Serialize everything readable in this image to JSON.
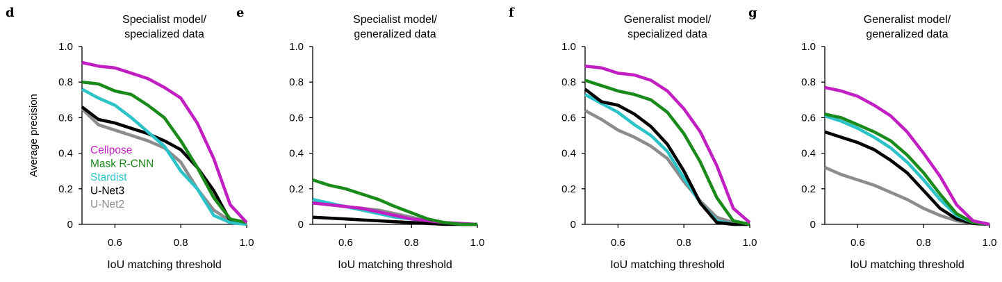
{
  "figure": {
    "ylabel": "Average precision",
    "colors": {
      "Cellpose": "#c21fc2",
      "Mask R-CNN": "#1a8a1a",
      "Stardist": "#2cc3c8",
      "U-Net3": "#000000",
      "U-Net2": "#8c8c8c"
    },
    "legend_placement": "lower-left of panel d"
  },
  "chart_data": [
    {
      "type": "line",
      "panel": "d",
      "title_lines": [
        "Specialist model/",
        "specialized data"
      ],
      "xlabel": "IoU matching threshold",
      "ylabel": "Average precision",
      "xlim": [
        0.5,
        1.0
      ],
      "ylim": [
        0,
        1.0
      ],
      "xticks": [
        0.6,
        0.8,
        1.0
      ],
      "xtick_labels": [
        "0.6",
        "0.8",
        "1.0"
      ],
      "yticks": [
        0,
        0.2,
        0.4,
        0.6,
        0.8,
        1.0
      ],
      "ytick_labels": [
        "0",
        "0.2",
        "0.4",
        "0.6",
        "0.8",
        "1.0"
      ],
      "show_ylabel": true,
      "show_legend": true,
      "x": [
        0.5,
        0.55,
        0.6,
        0.65,
        0.7,
        0.75,
        0.8,
        0.85,
        0.9,
        0.95,
        1.0
      ],
      "series": [
        {
          "name": "U-Net2",
          "values": [
            0.65,
            0.56,
            0.53,
            0.5,
            0.47,
            0.43,
            0.35,
            0.2,
            0.08,
            0.02,
            0.0
          ]
        },
        {
          "name": "U-Net3",
          "values": [
            0.66,
            0.59,
            0.57,
            0.54,
            0.51,
            0.47,
            0.42,
            0.32,
            0.19,
            0.02,
            0.01
          ]
        },
        {
          "name": "Stardist",
          "values": [
            0.76,
            0.71,
            0.67,
            0.6,
            0.52,
            0.44,
            0.3,
            0.2,
            0.05,
            0.01,
            0.0
          ]
        },
        {
          "name": "Mask R-CNN",
          "values": [
            0.8,
            0.79,
            0.75,
            0.73,
            0.67,
            0.6,
            0.47,
            0.32,
            0.15,
            0.03,
            0.01
          ]
        },
        {
          "name": "Cellpose",
          "values": [
            0.91,
            0.89,
            0.88,
            0.85,
            0.82,
            0.77,
            0.71,
            0.57,
            0.37,
            0.11,
            0.01
          ]
        }
      ]
    },
    {
      "type": "line",
      "panel": "e",
      "title_lines": [
        "Specialist model/",
        "generalized data"
      ],
      "xlabel": "IoU matching threshold",
      "ylabel": "",
      "xlim": [
        0.5,
        1.0
      ],
      "ylim": [
        0,
        1.0
      ],
      "xticks": [
        0.6,
        0.8,
        1.0
      ],
      "xtick_labels": [
        "0.6",
        "0.8",
        "1.0"
      ],
      "yticks": [
        0,
        0.2,
        0.4,
        0.6,
        0.8,
        1.0
      ],
      "ytick_labels": [
        "0",
        "0.2",
        "0.4",
        "0.6",
        "0.8",
        "1.0"
      ],
      "show_ylabel": false,
      "show_legend": false,
      "x": [
        0.5,
        0.55,
        0.6,
        0.65,
        0.7,
        0.75,
        0.8,
        0.85,
        0.9,
        0.95,
        1.0
      ],
      "series": [
        {
          "name": "U-Net2",
          "values": [
            0.12,
            0.11,
            0.1,
            0.09,
            0.08,
            0.06,
            0.04,
            0.02,
            0.005,
            0.0,
            0.0
          ]
        },
        {
          "name": "Stardist",
          "values": [
            0.14,
            0.12,
            0.1,
            0.08,
            0.06,
            0.04,
            0.03,
            0.01,
            0.005,
            0.0,
            0.0
          ]
        },
        {
          "name": "U-Net3",
          "values": [
            0.04,
            0.035,
            0.03,
            0.025,
            0.02,
            0.015,
            0.01,
            0.005,
            0.0,
            0.0,
            0.0
          ]
        },
        {
          "name": "Cellpose",
          "values": [
            0.12,
            0.11,
            0.1,
            0.09,
            0.07,
            0.05,
            0.03,
            0.02,
            0.01,
            0.005,
            0.0
          ]
        },
        {
          "name": "Mask R-CNN",
          "values": [
            0.25,
            0.22,
            0.2,
            0.17,
            0.14,
            0.1,
            0.065,
            0.03,
            0.01,
            0.0,
            0.0
          ]
        }
      ]
    },
    {
      "type": "line",
      "panel": "f",
      "title_lines": [
        "Generalist model/",
        "specialized data"
      ],
      "xlabel": "IoU matching threshold",
      "ylabel": "",
      "xlim": [
        0.5,
        1.0
      ],
      "ylim": [
        0,
        1.0
      ],
      "xticks": [
        0.6,
        0.8,
        1.0
      ],
      "xtick_labels": [
        "0.6",
        "0.8",
        "1.0"
      ],
      "yticks": [
        0,
        0.2,
        0.4,
        0.6,
        0.8,
        1.0
      ],
      "ytick_labels": [
        "0",
        "0.2",
        "0.4",
        "0.6",
        "0.8",
        "1.0"
      ],
      "show_ylabel": false,
      "show_legend": false,
      "x": [
        0.5,
        0.55,
        0.6,
        0.65,
        0.7,
        0.75,
        0.8,
        0.85,
        0.9,
        0.95,
        1.0
      ],
      "series": [
        {
          "name": "U-Net2",
          "values": [
            0.64,
            0.59,
            0.53,
            0.49,
            0.44,
            0.37,
            0.24,
            0.13,
            0.04,
            0.01,
            0.0
          ]
        },
        {
          "name": "Stardist",
          "values": [
            0.73,
            0.68,
            0.63,
            0.56,
            0.5,
            0.41,
            0.26,
            0.12,
            0.02,
            0.0,
            0.0
          ]
        },
        {
          "name": "U-Net3",
          "values": [
            0.76,
            0.69,
            0.67,
            0.62,
            0.55,
            0.45,
            0.3,
            0.12,
            0.01,
            0.0,
            0.0
          ]
        },
        {
          "name": "Mask R-CNN",
          "values": [
            0.81,
            0.78,
            0.75,
            0.73,
            0.7,
            0.63,
            0.51,
            0.35,
            0.15,
            0.02,
            0.0
          ]
        },
        {
          "name": "Cellpose",
          "values": [
            0.89,
            0.88,
            0.85,
            0.84,
            0.81,
            0.75,
            0.65,
            0.52,
            0.33,
            0.09,
            0.01
          ]
        }
      ]
    },
    {
      "type": "line",
      "panel": "g",
      "title_lines": [
        "Generalist model/",
        "generalized data"
      ],
      "xlabel": "IoU matching threshold",
      "ylabel": "",
      "xlim": [
        0.5,
        1.0
      ],
      "ylim": [
        0,
        1.0
      ],
      "xticks": [
        0.6,
        0.8,
        1.0
      ],
      "xtick_labels": [
        "0.6",
        "0.8",
        "1.0"
      ],
      "yticks": [
        0,
        0.2,
        0.4,
        0.6,
        0.8,
        1.0
      ],
      "ytick_labels": [
        "0",
        "0.2",
        "0.4",
        "0.6",
        "0.8",
        "1.0"
      ],
      "show_ylabel": false,
      "show_legend": false,
      "x": [
        0.5,
        0.55,
        0.6,
        0.65,
        0.7,
        0.75,
        0.8,
        0.85,
        0.9,
        0.95,
        1.0
      ],
      "series": [
        {
          "name": "U-Net2",
          "values": [
            0.32,
            0.28,
            0.25,
            0.22,
            0.18,
            0.14,
            0.09,
            0.05,
            0.02,
            0.005,
            0.0
          ]
        },
        {
          "name": "U-Net3",
          "values": [
            0.52,
            0.49,
            0.46,
            0.42,
            0.36,
            0.29,
            0.19,
            0.09,
            0.03,
            0.005,
            0.0
          ]
        },
        {
          "name": "Stardist",
          "values": [
            0.61,
            0.58,
            0.54,
            0.49,
            0.43,
            0.35,
            0.25,
            0.14,
            0.05,
            0.01,
            0.0
          ]
        },
        {
          "name": "Mask R-CNN",
          "values": [
            0.62,
            0.6,
            0.56,
            0.52,
            0.47,
            0.39,
            0.29,
            0.17,
            0.06,
            0.01,
            0.0
          ]
        },
        {
          "name": "Cellpose",
          "values": [
            0.77,
            0.75,
            0.72,
            0.67,
            0.61,
            0.52,
            0.4,
            0.27,
            0.11,
            0.02,
            0.0
          ]
        }
      ]
    }
  ],
  "legend": {
    "entries": [
      {
        "name": "Cellpose",
        "label": "Cellpose"
      },
      {
        "name": "Mask R-CNN",
        "label": "Mask R-CNN"
      },
      {
        "name": "Stardist",
        "label": "Stardist"
      },
      {
        "name": "U-Net3",
        "label": "U-Net3"
      },
      {
        "name": "U-Net2",
        "label": "U-Net2"
      }
    ]
  }
}
